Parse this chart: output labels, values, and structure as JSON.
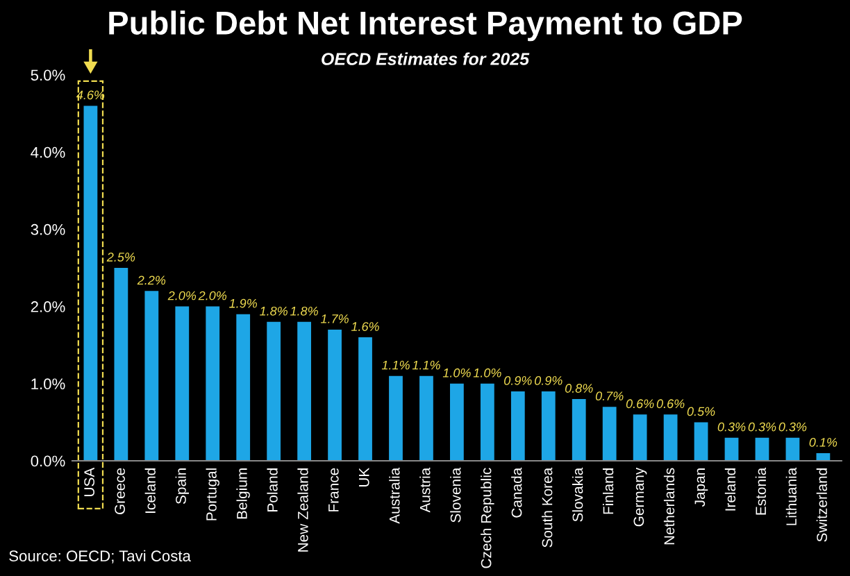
{
  "chart_data": {
    "type": "bar",
    "title": "Public Debt Net Interest Payment to GDP",
    "subtitle": "OECD Estimates for 2025",
    "categories": [
      "USA",
      "Greece",
      "Iceland",
      "Spain",
      "Portugal",
      "Belgium",
      "Poland",
      "New Zealand",
      "France",
      "UK",
      "Australia",
      "Austria",
      "Slovenia",
      "Czech Republic",
      "Canada",
      "South Korea",
      "Slovakia",
      "Finland",
      "Germany",
      "Netherlands",
      "Japan",
      "Ireland",
      "Estonia",
      "Lithuania",
      "Switzerland"
    ],
    "values": [
      4.6,
      2.5,
      2.2,
      2.0,
      2.0,
      1.9,
      1.8,
      1.8,
      1.7,
      1.6,
      1.1,
      1.1,
      1.0,
      1.0,
      0.9,
      0.9,
      0.8,
      0.7,
      0.6,
      0.6,
      0.5,
      0.3,
      0.3,
      0.3,
      0.1
    ],
    "value_labels": [
      "4.6%",
      "2.5%",
      "2.2%",
      "2.0%",
      "2.0%",
      "1.9%",
      "1.8%",
      "1.8%",
      "1.7%",
      "1.6%",
      "1.1%",
      "1.1%",
      "1.0%",
      "1.0%",
      "0.9%",
      "0.9%",
      "0.8%",
      "0.7%",
      "0.6%",
      "0.6%",
      "0.5%",
      "0.3%",
      "0.3%",
      "0.3%",
      "0.1%"
    ],
    "color": "#1ea6e6",
    "ylim": [
      0,
      5
    ],
    "yticks": [
      {
        "value": 0,
        "label": "0.0%"
      },
      {
        "value": 1,
        "label": "1.0%"
      },
      {
        "value": 2,
        "label": "2.0%"
      },
      {
        "value": 3,
        "label": "3.0%"
      },
      {
        "value": 4,
        "label": "4.0%"
      },
      {
        "value": 5,
        "label": "5.0%"
      }
    ],
    "grid": false,
    "legend": false,
    "annotations": [
      "Source: OECD; Tavi Costa"
    ]
  }
}
